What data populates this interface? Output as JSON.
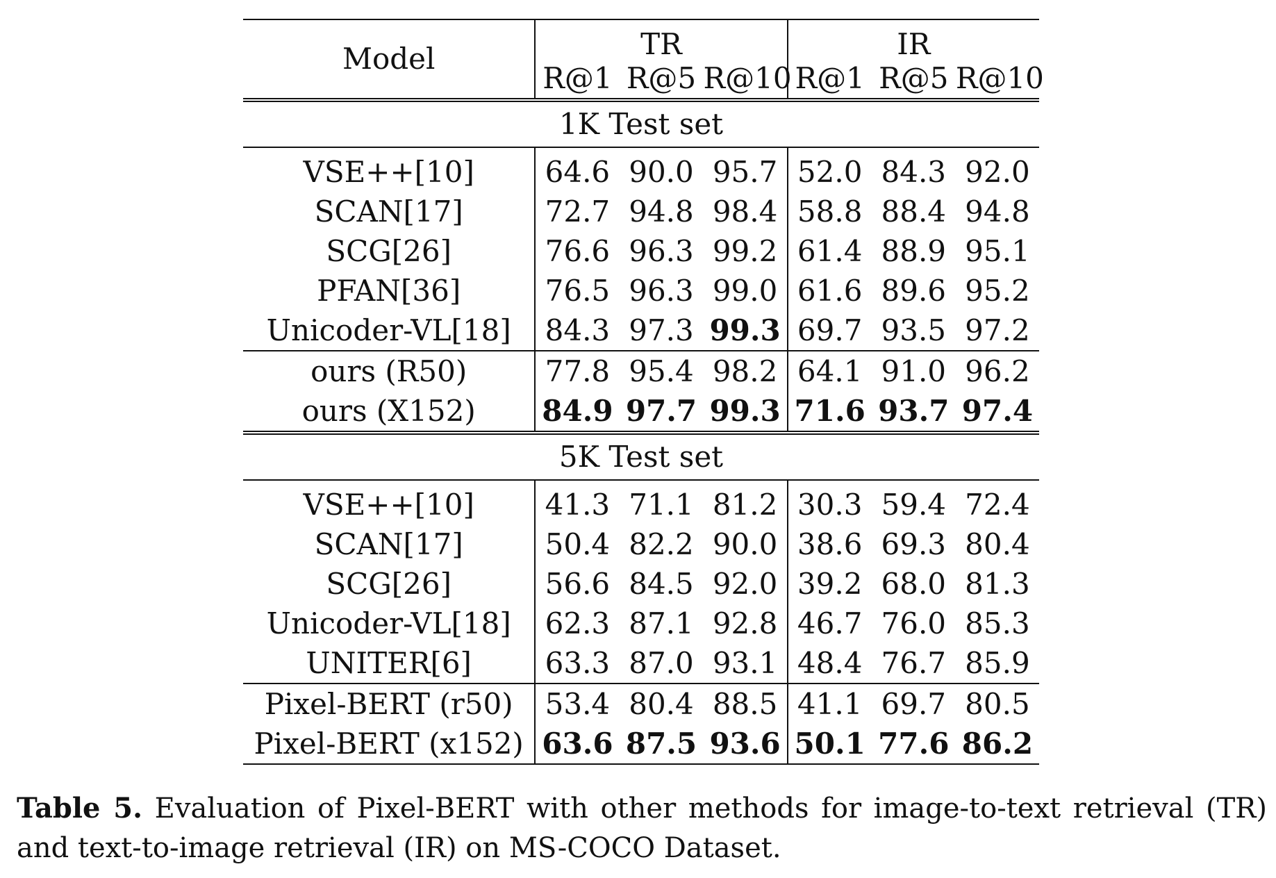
{
  "table": {
    "header": {
      "model": "Model",
      "groups": [
        "TR",
        "IR"
      ],
      "metrics": [
        "R@1",
        "R@5",
        "R@10",
        "R@1",
        "R@5",
        "R@10"
      ]
    },
    "sections": [
      {
        "title": "1K Test set",
        "rows": [
          {
            "model": "VSE++[10]",
            "values": [
              "64.6",
              "90.0",
              "95.7",
              "52.0",
              "84.3",
              "92.0"
            ],
            "bold": [
              false,
              false,
              false,
              false,
              false,
              false
            ]
          },
          {
            "model": "SCAN[17]",
            "values": [
              "72.7",
              "94.8",
              "98.4",
              "58.8",
              "88.4",
              "94.8"
            ],
            "bold": [
              false,
              false,
              false,
              false,
              false,
              false
            ]
          },
          {
            "model": "SCG[26]",
            "values": [
              "76.6",
              "96.3",
              "99.2",
              "61.4",
              "88.9",
              "95.1"
            ],
            "bold": [
              false,
              false,
              false,
              false,
              false,
              false
            ]
          },
          {
            "model": "PFAN[36]",
            "values": [
              "76.5",
              "96.3",
              "99.0",
              "61.6",
              "89.6",
              "95.2"
            ],
            "bold": [
              false,
              false,
              false,
              false,
              false,
              false
            ]
          },
          {
            "model": "Unicoder-VL[18]",
            "values": [
              "84.3",
              "97.3",
              "99.3",
              "69.7",
              "93.5",
              "97.2"
            ],
            "bold": [
              false,
              false,
              true,
              false,
              false,
              false
            ]
          },
          {
            "model": "ours (R50)",
            "values": [
              "77.8",
              "95.4",
              "98.2",
              "64.1",
              "91.0",
              "96.2"
            ],
            "bold": [
              false,
              false,
              false,
              false,
              false,
              false
            ]
          },
          {
            "model": "ours (X152)",
            "values": [
              "84.9",
              "97.7",
              "99.3",
              "71.6",
              "93.7",
              "97.4"
            ],
            "bold": [
              true,
              true,
              true,
              true,
              true,
              true
            ]
          }
        ]
      },
      {
        "title": "5K Test set",
        "rows": [
          {
            "model": "VSE++[10]",
            "values": [
              "41.3",
              "71.1",
              "81.2",
              "30.3",
              "59.4",
              "72.4"
            ],
            "bold": [
              false,
              false,
              false,
              false,
              false,
              false
            ]
          },
          {
            "model": "SCAN[17]",
            "values": [
              "50.4",
              "82.2",
              "90.0",
              "38.6",
              "69.3",
              "80.4"
            ],
            "bold": [
              false,
              false,
              false,
              false,
              false,
              false
            ]
          },
          {
            "model": "SCG[26]",
            "values": [
              "56.6",
              "84.5",
              "92.0",
              "39.2",
              "68.0",
              "81.3"
            ],
            "bold": [
              false,
              false,
              false,
              false,
              false,
              false
            ]
          },
          {
            "model": "Unicoder-VL[18]",
            "values": [
              "62.3",
              "87.1",
              "92.8",
              "46.7",
              "76.0",
              "85.3"
            ],
            "bold": [
              false,
              false,
              false,
              false,
              false,
              false
            ]
          },
          {
            "model": "UNITER[6]",
            "values": [
              "63.3",
              "87.0",
              "93.1",
              "48.4",
              "76.7",
              "85.9"
            ],
            "bold": [
              false,
              false,
              false,
              false,
              false,
              false
            ]
          },
          {
            "model": "Pixel-BERT (r50)",
            "values": [
              "53.4",
              "80.4",
              "88.5",
              "41.1",
              "69.7",
              "80.5"
            ],
            "bold": [
              false,
              false,
              false,
              false,
              false,
              false
            ]
          },
          {
            "model": "Pixel-BERT (x152)",
            "values": [
              "63.6",
              "87.5",
              "93.6",
              "50.1",
              "77.6",
              "86.2"
            ],
            "bold": [
              true,
              true,
              true,
              true,
              true,
              true
            ]
          }
        ]
      }
    ]
  },
  "caption": {
    "label": "Table 5.",
    "text": "Evaluation of Pixel-BERT with other methods for image-to-text retrieval (TR) and text-to-image retrieval (IR) on MS-COCO Dataset."
  }
}
